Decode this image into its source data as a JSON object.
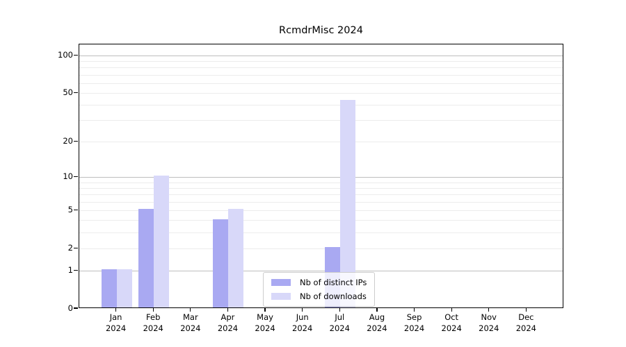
{
  "chart_data": {
    "type": "bar",
    "title": "RcmdrMisc 2024",
    "x_months": [
      "Jan",
      "Feb",
      "Mar",
      "Apr",
      "May",
      "Jun",
      "Jul",
      "Aug",
      "Sep",
      "Oct",
      "Nov",
      "Dec"
    ],
    "x_year": "2024",
    "series": [
      {
        "name": "Nb of distinct IPs",
        "color": "#a9a9f2",
        "values": [
          1,
          5,
          0,
          4,
          0,
          0,
          2,
          0,
          0,
          0,
          0,
          0
        ]
      },
      {
        "name": "Nb of downloads",
        "color": "#d8d8f9",
        "values": [
          1,
          10,
          0,
          5,
          0,
          0,
          43,
          0,
          0,
          0,
          0,
          0
        ]
      }
    ],
    "yscale": "log1p",
    "ylim": [
      0,
      123
    ],
    "yticks_labeled": [
      100,
      50,
      20,
      10,
      5,
      2,
      1,
      0
    ],
    "yticks_minor_grid": [
      2,
      3,
      4,
      5,
      6,
      7,
      8,
      9,
      20,
      30,
      40,
      50,
      60,
      70,
      80,
      90
    ],
    "yticks_major_grid": [
      1,
      10,
      100
    ],
    "grid": "horizontal",
    "grid_minor_color": "#ececec",
    "grid_major_color": "#bdbdbd",
    "legend_position": "lower center"
  }
}
